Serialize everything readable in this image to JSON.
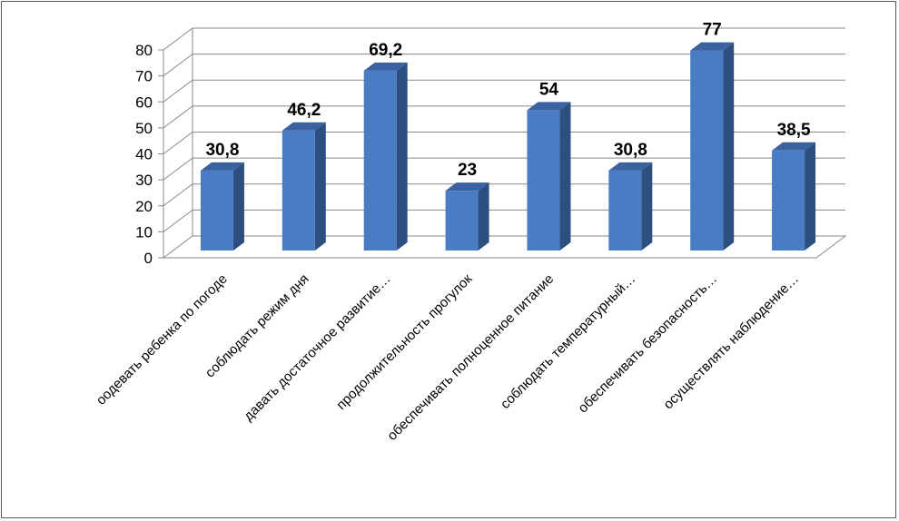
{
  "chart_data": {
    "type": "bar",
    "style": "3d-column",
    "categories": [
      "оодевать ребенка по погоде",
      "соблюдать режим дня",
      "давать достаточное развитие…",
      "продолжительность прогулок",
      "обеспечивать полноценное питание",
      "соблюдать температурный…",
      "обеспечивать безопасность…",
      "осуществлять наблюдение…"
    ],
    "values": [
      30.8,
      46.2,
      69.2,
      23,
      54,
      30.8,
      77,
      38.5
    ],
    "data_labels": [
      "30,8",
      "46,2",
      "69,2",
      "23",
      "54",
      "30,8",
      "77",
      "38,5"
    ],
    "ylim": [
      0,
      80
    ],
    "yticks": [
      "0",
      "10",
      "20",
      "30",
      "40",
      "50",
      "60",
      "70",
      "80"
    ],
    "grid": true,
    "legend": "none",
    "colors": {
      "bar_front": "#4A7CC4",
      "bar_side": "#2C4F80",
      "bar_top": "#3A62A0",
      "grid": "#888888",
      "text": "#000000"
    }
  }
}
